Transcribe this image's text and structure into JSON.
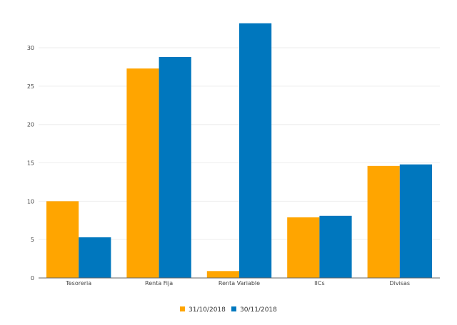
{
  "chart_data": {
    "type": "bar",
    "categories": [
      "Tesoreria",
      "Renta Fija",
      "Renta Variable",
      "IICs",
      "Divisas"
    ],
    "series": [
      {
        "name": "31/10/2018",
        "values": [
          10.0,
          27.3,
          0.9,
          7.9,
          14.6
        ]
      },
      {
        "name": "30/11/2018",
        "values": [
          5.3,
          28.8,
          33.2,
          8.1,
          14.8
        ]
      }
    ],
    "ylim": [
      0,
      34
    ],
    "yticks": [
      0,
      5,
      10,
      15,
      20,
      25,
      30
    ],
    "grid": true,
    "legend": "bottom-center",
    "title": "",
    "xlabel": "",
    "ylabel": ""
  },
  "colors": {
    "series": [
      "#FFA500",
      "#0077BE"
    ],
    "grid": "#eeeeee",
    "axis": "#666666"
  }
}
